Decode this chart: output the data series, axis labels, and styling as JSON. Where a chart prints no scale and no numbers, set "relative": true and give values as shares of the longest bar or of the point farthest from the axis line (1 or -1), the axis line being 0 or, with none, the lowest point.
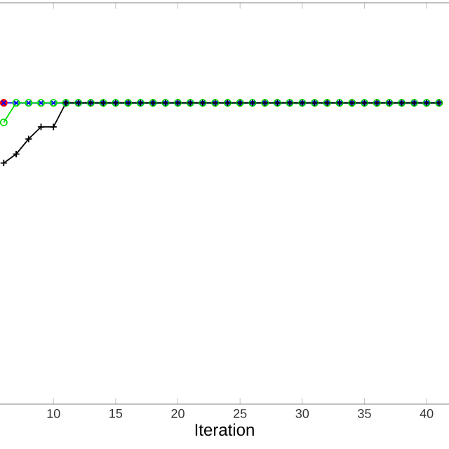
{
  "chart_data": {
    "type": "line",
    "xlabel": "Iteration",
    "relative": true,
    "grid": false,
    "tick_labels": "x",
    "xlim": [
      5.7,
      41.8
    ],
    "xticks": [
      10,
      15,
      20,
      25,
      30,
      35,
      40
    ],
    "x": [
      6,
      7,
      8,
      9,
      10,
      11,
      12,
      13,
      14,
      15,
      16,
      17,
      18,
      19,
      20,
      21,
      22,
      23,
      24,
      25,
      26,
      27,
      28,
      29,
      30,
      31,
      32,
      33,
      34,
      35,
      36,
      37,
      38,
      39,
      40,
      41
    ],
    "series": [
      {
        "color": "#ff0000",
        "marker": "circle",
        "values": [
          1,
          null,
          null,
          null,
          null,
          null,
          null,
          null,
          null,
          null,
          null,
          null,
          null,
          null,
          null,
          null,
          null,
          null,
          null,
          null,
          null,
          null,
          null,
          null,
          null,
          null,
          null,
          null,
          null,
          null,
          null,
          null,
          null,
          null,
          null,
          null
        ]
      },
      {
        "color": "#0000ff",
        "marker": "cross",
        "values": [
          1,
          1,
          1,
          1,
          1,
          1,
          1,
          1,
          1,
          1,
          1,
          1,
          1,
          1,
          1,
          1,
          1,
          1,
          1,
          1,
          1,
          1,
          1,
          1,
          1,
          1,
          1,
          1,
          1,
          1,
          1,
          1,
          1,
          1,
          1,
          1
        ]
      },
      {
        "color": "#00dd00",
        "marker": "open circle",
        "values": [
          0.935,
          1,
          1,
          1,
          1,
          1,
          1,
          1,
          1,
          1,
          1,
          1,
          1,
          1,
          1,
          1,
          1,
          1,
          1,
          1,
          1,
          1,
          1,
          1,
          1,
          1,
          1,
          1,
          1,
          1,
          1,
          1,
          1,
          1,
          1,
          1
        ]
      },
      {
        "color": "#000000",
        "marker": "plus",
        "values": [
          0.8,
          0.83,
          0.88,
          0.92,
          0.92,
          1,
          1,
          1,
          1,
          1,
          1,
          1,
          1,
          1,
          1,
          1,
          1,
          1,
          1,
          1,
          1,
          1,
          1,
          1,
          1,
          1,
          1,
          1,
          1,
          1,
          1,
          1,
          1,
          1,
          1,
          1
        ]
      }
    ]
  }
}
